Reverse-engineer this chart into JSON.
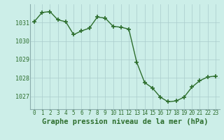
{
  "hours": [
    0,
    1,
    2,
    3,
    4,
    5,
    6,
    7,
    8,
    9,
    10,
    11,
    12,
    13,
    14,
    15,
    16,
    17,
    18,
    19,
    20,
    21,
    22,
    23
  ],
  "pressure": [
    1031.05,
    1031.55,
    1031.6,
    1031.15,
    1031.05,
    1030.35,
    1030.55,
    1030.7,
    1031.3,
    1031.25,
    1030.8,
    1030.75,
    1030.65,
    1028.85,
    1027.75,
    1027.45,
    1026.95,
    1026.7,
    1026.75,
    1026.95,
    1027.5,
    1027.85,
    1028.05,
    1028.1
  ],
  "line_color": "#2d6e2d",
  "marker": "+",
  "markersize": 5,
  "markeredgewidth": 1.2,
  "linewidth": 1.0,
  "bg_color": "#cceee8",
  "grid_color": "#aacccc",
  "tick_label_color": "#2d6e2d",
  "xlabel": "Graphe pression niveau de la mer (hPa)",
  "xlabel_color": "#2d6e2d",
  "xlabel_fontsize": 7.5,
  "xtick_fontsize": 5.5,
  "ytick_fontsize": 6.0,
  "ylim_min": 1026.3,
  "ylim_max": 1032.0,
  "yticks": [
    1027,
    1028,
    1029,
    1030,
    1031
  ],
  "xticks": [
    0,
    1,
    2,
    3,
    4,
    5,
    6,
    7,
    8,
    9,
    10,
    11,
    12,
    13,
    14,
    15,
    16,
    17,
    18,
    19,
    20,
    21,
    22,
    23
  ]
}
